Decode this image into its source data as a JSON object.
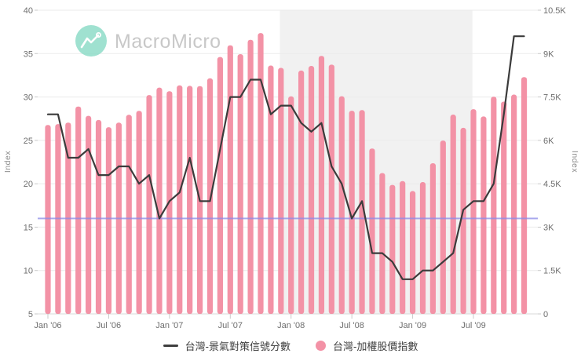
{
  "logo": {
    "text": "MacroMicro",
    "icon": "macromicro-logo-icon",
    "circle_color": "#8edcc8",
    "text_color": "#c8c8c8"
  },
  "chart_data": {
    "type": "combo-bar-line",
    "x_start": "Jan 2006",
    "x_end": "Dec 2009",
    "months_count": 48,
    "x_tick_labels": [
      "Jan '06",
      "Jul '06",
      "Jan '07",
      "Jul '07",
      "Jan '08",
      "Jul '08",
      "Jan '09",
      "Jul '09"
    ],
    "x_tick_month_indices": [
      0,
      6,
      12,
      18,
      24,
      30,
      36,
      42
    ],
    "left_axis": {
      "label": "Index",
      "tick_labels": [
        "40",
        "35",
        "30",
        "25",
        "20",
        "15",
        "10",
        "5"
      ],
      "tick_values": [
        40,
        35,
        30,
        25,
        20,
        15,
        10,
        5
      ],
      "min": 5,
      "max": 40
    },
    "right_axis": {
      "label": "Index",
      "tick_labels": [
        "10.5K",
        "9K",
        "7.5K",
        "6K",
        "4.5K",
        "3K",
        "1.5K",
        "0"
      ],
      "tick_values": [
        10500,
        9000,
        7500,
        6000,
        4500,
        3000,
        1500,
        0
      ],
      "min": 0,
      "max": 10500
    },
    "threshold_line": {
      "left_axis_value": 16,
      "color": "#8b8be8"
    },
    "recession_band": {
      "from_month_index": 22.9,
      "to_month_index": 41.9,
      "color": "#f1f1f1"
    },
    "grid": {
      "color": "#ebebeb",
      "baseline_color": "#d9d9d9",
      "tick_color": "#c9c9c9",
      "axis_text_color": "#6e6e6e"
    },
    "series": [
      {
        "name": "台灣-景氣對策信號分數",
        "type": "line",
        "axis": "left",
        "color": "#3b3b3b",
        "values": [
          28,
          28,
          23,
          23,
          24,
          21,
          21,
          22,
          22,
          20,
          21,
          16,
          18,
          19,
          23,
          18,
          18,
          24,
          30,
          30,
          32,
          32,
          28,
          29,
          29,
          27,
          26,
          27,
          22,
          20,
          16,
          18,
          12,
          12,
          11,
          9,
          9,
          10,
          10,
          11,
          12,
          17,
          18,
          18,
          20,
          28,
          37,
          37
        ]
      },
      {
        "name": "台灣-加權股價指數",
        "type": "bar",
        "axis": "right",
        "color": "#f392a6",
        "values": [
          6532,
          6561,
          6614,
          7171,
          6847,
          6704,
          6454,
          6612,
          6883,
          7021,
          7568,
          7824,
          7699,
          7902,
          7884,
          7875,
          8145,
          8883,
          9287,
          8982,
          9477,
          9711,
          8586,
          8506,
          7521,
          8413,
          8573,
          8920,
          8619,
          7524,
          7024,
          7046,
          5719,
          4871,
          4460,
          4591,
          4248,
          4558,
          5210,
          5993,
          6890,
          6432,
          7078,
          6826,
          7509,
          7340,
          7583,
          8188
        ]
      }
    ]
  },
  "legend": {
    "items": [
      {
        "label": "台灣-景氣對策信號分數",
        "marker": "line-dash",
        "color": "#3f3f3f"
      },
      {
        "label": "台灣-加權股價指數",
        "marker": "dot",
        "color": "#f392a6"
      }
    ]
  }
}
